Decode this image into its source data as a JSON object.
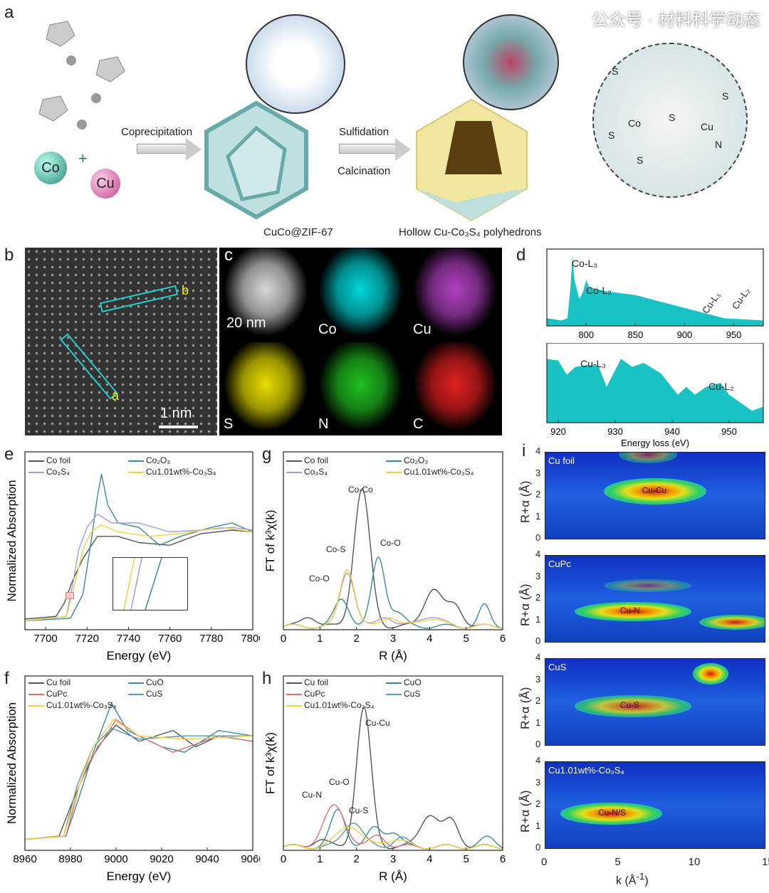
{
  "panel_labels": {
    "a": "a",
    "b": "b",
    "c": "c",
    "d": "d",
    "e": "e",
    "f": "f",
    "g": "g",
    "h": "h",
    "i": "i"
  },
  "scheme": {
    "co": "Co",
    "plus": "+",
    "cu": "Cu",
    "step1": "Coprecipitation",
    "step2a": "Sulfidation",
    "step2b": "Calcination",
    "product1": "CuCo@ZIF-67",
    "product2": "Hollow Cu-Co₃S₄ polyhedrons",
    "atoms": [
      "S",
      "S",
      "S",
      "S",
      "S",
      "Co",
      "Cu",
      "N"
    ]
  },
  "stem": {
    "scale": "1 nm",
    "line_a": "a",
    "line_b": "b"
  },
  "eds": {
    "scale": "20 nm",
    "tiles": [
      {
        "label": "",
        "color": "#d8d8d8"
      },
      {
        "label": "Co",
        "color": "#00d8d8"
      },
      {
        "label": "Cu",
        "color": "#b040c0"
      },
      {
        "label": "S",
        "color": "#e8e000"
      },
      {
        "label": "N",
        "color": "#20c020"
      },
      {
        "label": "C",
        "color": "#e02020"
      }
    ]
  },
  "colors": {
    "gray": "#555555",
    "teal": "#3a8a9a",
    "lilac": "#a89cd8",
    "yellow": "#f0d040",
    "red": "#e07070",
    "cus": "#5a9ab0",
    "eels": "#19c3c3"
  },
  "legend_e": [
    "Co foil",
    "Co₂O₃",
    "Co₃S₄",
    "Cu1.01wt%-Co₃S₄"
  ],
  "legend_f": [
    "Cu foil",
    "CuO",
    "CuPc",
    "CuS",
    "Cu1.01wt%-Co₃S₄"
  ],
  "annot_g": [
    "Co-Co",
    "Co-S",
    "Co-O",
    "Co-O"
  ],
  "annot_h": [
    "Cu-Cu",
    "Cu-N",
    "Cu-O",
    "Cu-S"
  ],
  "annot_d": [
    "Co-L₃",
    "Co-L₂",
    "Cu-L₃",
    "Cu-L₂",
    "Cu-L₃",
    "Cu-L₂"
  ],
  "wt_panels": [
    {
      "label": "Cu foil",
      "peak": "Cu-Cu",
      "spots": [
        [
          7.5,
          2.2,
          1,
          3.5,
          0.6
        ],
        [
          7,
          3.9,
          0.5,
          2,
          0.4
        ]
      ]
    },
    {
      "label": "CuPc",
      "peak": "Cu-N",
      "spots": [
        [
          6,
          1.4,
          1,
          4,
          0.45
        ],
        [
          13,
          0.9,
          0.9,
          2.5,
          0.35
        ],
        [
          7,
          2.6,
          0.4,
          3,
          0.3
        ]
      ]
    },
    {
      "label": "CuS",
      "peak": "Cu-S",
      "spots": [
        [
          11.3,
          3.3,
          1,
          1.2,
          0.5
        ],
        [
          6,
          1.8,
          0.8,
          4,
          0.5
        ]
      ]
    },
    {
      "label": "Cu1.01wt%-Co₃S₄",
      "peak": "Cu-N/S",
      "spots": [
        [
          4.5,
          1.6,
          1,
          3.5,
          0.5
        ]
      ]
    }
  ],
  "watermark": "公众号 · 材料科学动态",
  "chart_data": [
    {
      "id": "e",
      "type": "line",
      "xlabel": "Energy (eV)",
      "ylabel": "Normalized Absorption",
      "xlim": [
        7690,
        7800
      ],
      "ylim": [
        -0.1,
        1.9
      ],
      "xticks": [
        7700,
        7720,
        7740,
        7760,
        7780,
        7800
      ],
      "series": [
        {
          "name": "Co foil",
          "color": "#555555",
          "pts": [
            [
              7690,
              0.02
            ],
            [
              7705,
              0.05
            ],
            [
              7709,
              0.2
            ],
            [
              7713,
              0.45
            ],
            [
              7718,
              0.7
            ],
            [
              7725,
              0.95
            ],
            [
              7735,
              0.95
            ],
            [
              7745,
              0.88
            ],
            [
              7760,
              0.85
            ],
            [
              7775,
              0.98
            ],
            [
              7790,
              1.02
            ],
            [
              7800,
              1.0
            ]
          ]
        },
        {
          "name": "Co₂O₃",
          "color": "#3a8a9a",
          "pts": [
            [
              7690,
              0
            ],
            [
              7712,
              0.03
            ],
            [
              7718,
              0.3
            ],
            [
              7722,
              0.9
            ],
            [
              7725,
              1.4
            ],
            [
              7727,
              1.65
            ],
            [
              7730,
              1.3
            ],
            [
              7735,
              1.1
            ],
            [
              7745,
              1.05
            ],
            [
              7755,
              0.85
            ],
            [
              7765,
              0.95
            ],
            [
              7780,
              1.05
            ],
            [
              7790,
              1.1
            ],
            [
              7800,
              1.0
            ]
          ]
        },
        {
          "name": "Co₃S₄",
          "color": "#a89cd8",
          "pts": [
            [
              7690,
              0
            ],
            [
              7710,
              0.05
            ],
            [
              7713,
              0.4
            ],
            [
              7716,
              0.8
            ],
            [
              7720,
              1.05
            ],
            [
              7725,
              1.2
            ],
            [
              7732,
              1.1
            ],
            [
              7745,
              1.1
            ],
            [
              7760,
              1.0
            ],
            [
              7775,
              1.02
            ],
            [
              7790,
              1.05
            ],
            [
              7800,
              1.02
            ]
          ]
        },
        {
          "name": "Cu1.01wt%-Co₃S₄",
          "color": "#f0d040",
          "pts": [
            [
              7690,
              0
            ],
            [
              7710,
              0.05
            ],
            [
              7714,
              0.4
            ],
            [
              7718,
              0.8
            ],
            [
              7722,
              1.0
            ],
            [
              7727,
              1.08
            ],
            [
              7735,
              1.0
            ],
            [
              7750,
              0.95
            ],
            [
              7765,
              0.98
            ],
            [
              7785,
              1.05
            ],
            [
              7800,
              1.0
            ]
          ]
        }
      ]
    },
    {
      "id": "g",
      "type": "line",
      "xlabel": "R (Å)",
      "ylabel": "FT of k³χ(k)",
      "xlim": [
        0,
        6
      ],
      "ylim": [
        0,
        2.6
      ],
      "xticks": [
        0,
        1,
        2,
        3,
        4,
        5,
        6
      ],
      "series": [
        {
          "name": "Co foil",
          "color": "#555555",
          "peaks": [
            [
              2.15,
              2.0,
              0.22
            ],
            [
              4.1,
              0.55,
              0.25
            ],
            [
              4.7,
              0.3,
              0.2
            ],
            [
              0.7,
              0.15,
              0.2
            ]
          ]
        },
        {
          "name": "Co₂O₃",
          "color": "#3a8a9a",
          "peaks": [
            [
              1.6,
              0.4,
              0.2
            ],
            [
              2.6,
              1.0,
              0.18
            ],
            [
              3.1,
              0.2,
              0.2
            ],
            [
              5.5,
              0.3,
              0.15
            ]
          ]
        },
        {
          "name": "Co₃S₄",
          "color": "#a89cd8",
          "peaks": [
            [
              1.75,
              0.8,
              0.2
            ],
            [
              2.8,
              0.15,
              0.2
            ],
            [
              4.0,
              0.15,
              0.3
            ]
          ]
        },
        {
          "name": "Cu1.01wt%-Co₃S₄",
          "color": "#f0d040",
          "peaks": [
            [
              1.75,
              0.85,
              0.2
            ],
            [
              2.9,
              0.15,
              0.2
            ],
            [
              4.0,
              0.12,
              0.3
            ]
          ]
        }
      ]
    },
    {
      "id": "f",
      "type": "line",
      "xlabel": "Energy (eV)",
      "ylabel": "Normalized Absorption",
      "xlim": [
        8960,
        9060
      ],
      "ylim": [
        -0.1,
        1.5
      ],
      "xticks": [
        8960,
        8980,
        9000,
        9020,
        9040,
        9060
      ],
      "series": [
        {
          "name": "Cu foil",
          "color": "#555555",
          "pts": [
            [
              8960,
              0
            ],
            [
              8975,
              0.03
            ],
            [
              8980,
              0.3
            ],
            [
              8985,
              0.55
            ],
            [
              8992,
              0.85
            ],
            [
              9000,
              1.05
            ],
            [
              9010,
              0.9
            ],
            [
              9025,
              1.0
            ],
            [
              9035,
              0.85
            ],
            [
              9045,
              0.95
            ],
            [
              9060,
              0.9
            ]
          ]
        },
        {
          "name": "CuO",
          "color": "#3a8a9a",
          "pts": [
            [
              8960,
              0
            ],
            [
              8978,
              0.03
            ],
            [
              8984,
              0.4
            ],
            [
              8990,
              0.8
            ],
            [
              8998,
              1.25
            ],
            [
              9005,
              1.0
            ],
            [
              9020,
              0.85
            ],
            [
              9030,
              0.8
            ],
            [
              9045,
              1.0
            ],
            [
              9060,
              0.95
            ]
          ]
        },
        {
          "name": "CuPc",
          "color": "#e07070",
          "pts": [
            [
              8960,
              0
            ],
            [
              8978,
              0.03
            ],
            [
              8984,
              0.5
            ],
            [
              8988,
              0.7
            ],
            [
              9000,
              1.1
            ],
            [
              9010,
              0.95
            ],
            [
              9025,
              0.8
            ],
            [
              9045,
              0.95
            ],
            [
              9060,
              0.9
            ]
          ]
        },
        {
          "name": "CuS",
          "color": "#5a9ab0",
          "pts": [
            [
              8960,
              0
            ],
            [
              8977,
              0.03
            ],
            [
              8983,
              0.5
            ],
            [
              8990,
              0.85
            ],
            [
              8998,
              1.02
            ],
            [
              9010,
              0.92
            ],
            [
              9030,
              0.95
            ],
            [
              9060,
              0.95
            ]
          ]
        },
        {
          "name": "Cu1.01wt%-Co₃S₄",
          "color": "#f0d040",
          "pts": [
            [
              8960,
              0
            ],
            [
              8977,
              0.03
            ],
            [
              8984,
              0.5
            ],
            [
              8990,
              0.85
            ],
            [
              8999,
              1.1
            ],
            [
              9010,
              0.95
            ],
            [
              9030,
              0.92
            ],
            [
              9060,
              0.95
            ]
          ]
        }
      ]
    },
    {
      "id": "h",
      "type": "line",
      "xlabel": "R (Å)",
      "ylabel": "FT of k³χ(k)",
      "xlim": [
        0,
        6
      ],
      "ylim": [
        0,
        2.4
      ],
      "xticks": [
        0,
        1,
        2,
        3,
        4,
        5,
        6
      ],
      "series": [
        {
          "name": "Cu foil",
          "color": "#555555",
          "peaks": [
            [
              2.2,
              1.9,
              0.2
            ],
            [
              4.0,
              0.45,
              0.25
            ],
            [
              4.6,
              0.35,
              0.2
            ],
            [
              1.0,
              0.1,
              0.2
            ]
          ]
        },
        {
          "name": "CuO",
          "color": "#3a8a9a",
          "peaks": [
            [
              1.5,
              0.5,
              0.2
            ],
            [
              2.5,
              0.25,
              0.2
            ],
            [
              3.0,
              0.2,
              0.2
            ],
            [
              5.6,
              0.12,
              0.2
            ]
          ]
        },
        {
          "name": "CuPc",
          "color": "#e07070",
          "peaks": [
            [
              1.4,
              0.55,
              0.3
            ],
            [
              2.6,
              0.15,
              0.2
            ]
          ]
        },
        {
          "name": "CuS",
          "color": "#5a9ab0",
          "peaks": [
            [
              1.9,
              0.35,
              0.25
            ],
            [
              3.2,
              0.12,
              0.2
            ]
          ]
        },
        {
          "name": "Cu1.01wt%-Co₃S₄",
          "color": "#f0d040",
          "peaks": [
            [
              1.8,
              0.3,
              0.3
            ],
            [
              3.0,
              0.1,
              0.3
            ]
          ]
        }
      ]
    },
    {
      "id": "d1",
      "type": "area",
      "xlabel": "",
      "xlim": [
        760,
        980
      ],
      "ylim": [
        0,
        1
      ],
      "xticks": [
        800,
        850,
        900,
        950
      ],
      "series": [
        {
          "name": "EELS",
          "color": "#19c3c3",
          "pts": [
            [
              760,
              0.1
            ],
            [
              775,
              0.07
            ],
            [
              781,
              0.1
            ],
            [
              784,
              0.5
            ],
            [
              786,
              0.92
            ],
            [
              788,
              0.6
            ],
            [
              793,
              0.35
            ],
            [
              797,
              0.45
            ],
            [
              800,
              0.6
            ],
            [
              803,
              0.5
            ],
            [
              820,
              0.45
            ],
            [
              850,
              0.4
            ],
            [
              880,
              0.3
            ],
            [
              910,
              0.2
            ],
            [
              940,
              0.1
            ],
            [
              980,
              0.07
            ]
          ]
        }
      ]
    },
    {
      "id": "d2",
      "type": "area",
      "xlabel": "Energy loss (eV)",
      "xlim": [
        918,
        956
      ],
      "ylim": [
        0,
        1
      ],
      "xticks": [
        920,
        930,
        940,
        950
      ],
      "series": [
        {
          "name": "EELS",
          "color": "#19c3c3",
          "pts": [
            [
              918,
              0.8
            ],
            [
              920,
              0.78
            ],
            [
              921.5,
              0.6
            ],
            [
              923,
              0.7
            ],
            [
              925,
              0.72
            ],
            [
              927,
              0.72
            ],
            [
              928.5,
              0.45
            ],
            [
              931,
              0.8
            ],
            [
              933,
              0.7
            ],
            [
              935,
              0.75
            ],
            [
              938,
              0.62
            ],
            [
              941,
              0.35
            ],
            [
              942.5,
              0.45
            ],
            [
              944,
              0.35
            ],
            [
              946,
              0.45
            ],
            [
              948.5,
              0.5
            ],
            [
              950,
              0.35
            ],
            [
              952,
              0.25
            ],
            [
              954,
              0.15
            ],
            [
              956,
              0.2
            ]
          ]
        }
      ]
    }
  ]
}
